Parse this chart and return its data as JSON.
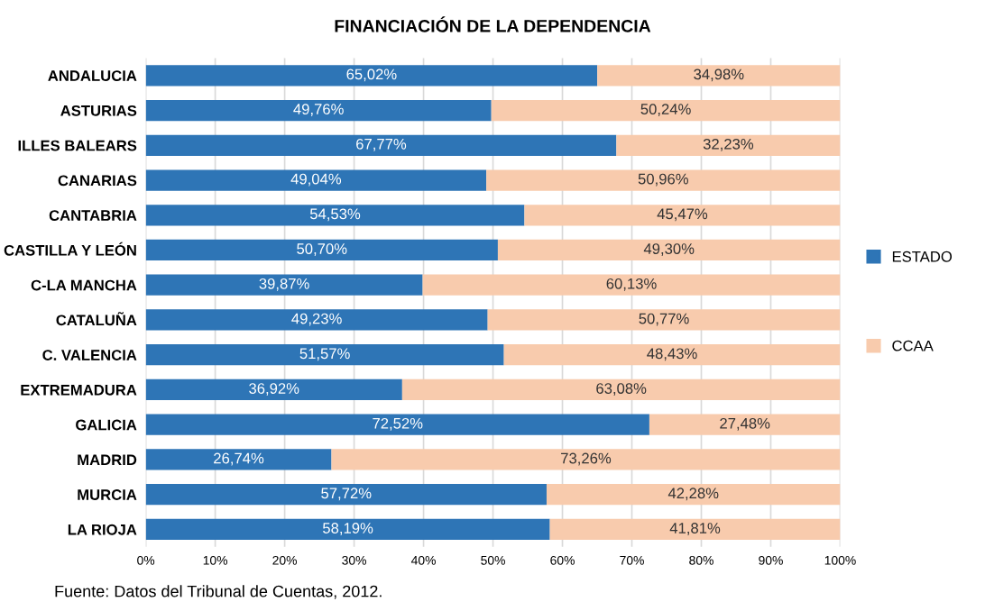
{
  "chart_data": {
    "type": "bar",
    "orientation": "horizontal",
    "stacked": true,
    "title": "FINANCIACIÓN DE LA DEPENDENCIA",
    "categories": [
      "ANDALUCIA",
      "ASTURIAS",
      "ILLES BALEARS",
      "CANARIAS",
      "CANTABRIA",
      "CASTILLA Y LEÓN",
      "C-LA MANCHA",
      "CATALUÑA",
      "C. VALENCIA",
      "EXTREMADURA",
      "GALICIA",
      "MADRID",
      "MURCIA",
      "LA RIOJA"
    ],
    "series": [
      {
        "name": "ESTADO",
        "color": "#2e75b6",
        "values": [
          65.02,
          49.76,
          67.77,
          49.04,
          54.53,
          50.7,
          39.87,
          49.23,
          51.57,
          36.92,
          72.52,
          26.74,
          57.72,
          58.19
        ],
        "value_labels": [
          "65,02%",
          "49,76%",
          "67,77%",
          "49,04%",
          "54,53%",
          "50,70%",
          "39,87%",
          "49,23%",
          "51,57%",
          "36,92%",
          "72,52%",
          "26,74%",
          "57,72%",
          "58,19%"
        ]
      },
      {
        "name": "CCAA",
        "color": "#f8cbad",
        "values": [
          34.98,
          50.24,
          32.23,
          50.96,
          45.47,
          49.3,
          60.13,
          50.77,
          48.43,
          63.08,
          27.48,
          73.26,
          42.28,
          41.81
        ],
        "value_labels": [
          "34,98%",
          "50,24%",
          "32,23%",
          "50,96%",
          "45,47%",
          "49,30%",
          "60,13%",
          "50,77%",
          "48,43%",
          "63,08%",
          "27,48%",
          "73,26%",
          "42,28%",
          "41,81%"
        ]
      }
    ],
    "xlim": [
      0,
      100
    ],
    "xticks": [
      {
        "value": 0,
        "label": "0%"
      },
      {
        "value": 10,
        "label": "10%"
      },
      {
        "value": 20,
        "label": "20%"
      },
      {
        "value": 30,
        "label": "30%"
      },
      {
        "value": 40,
        "label": "40%"
      },
      {
        "value": 50,
        "label": "50%"
      },
      {
        "value": 60,
        "label": "60%"
      },
      {
        "value": 70,
        "label": "70%"
      },
      {
        "value": 80,
        "label": "80%"
      },
      {
        "value": 90,
        "label": "90%"
      },
      {
        "value": 100,
        "label": "100%"
      }
    ],
    "grid": "x",
    "legend": "right",
    "annotations": [
      "Fuente: Datos del Tribunal de Cuentas, 2012."
    ]
  }
}
